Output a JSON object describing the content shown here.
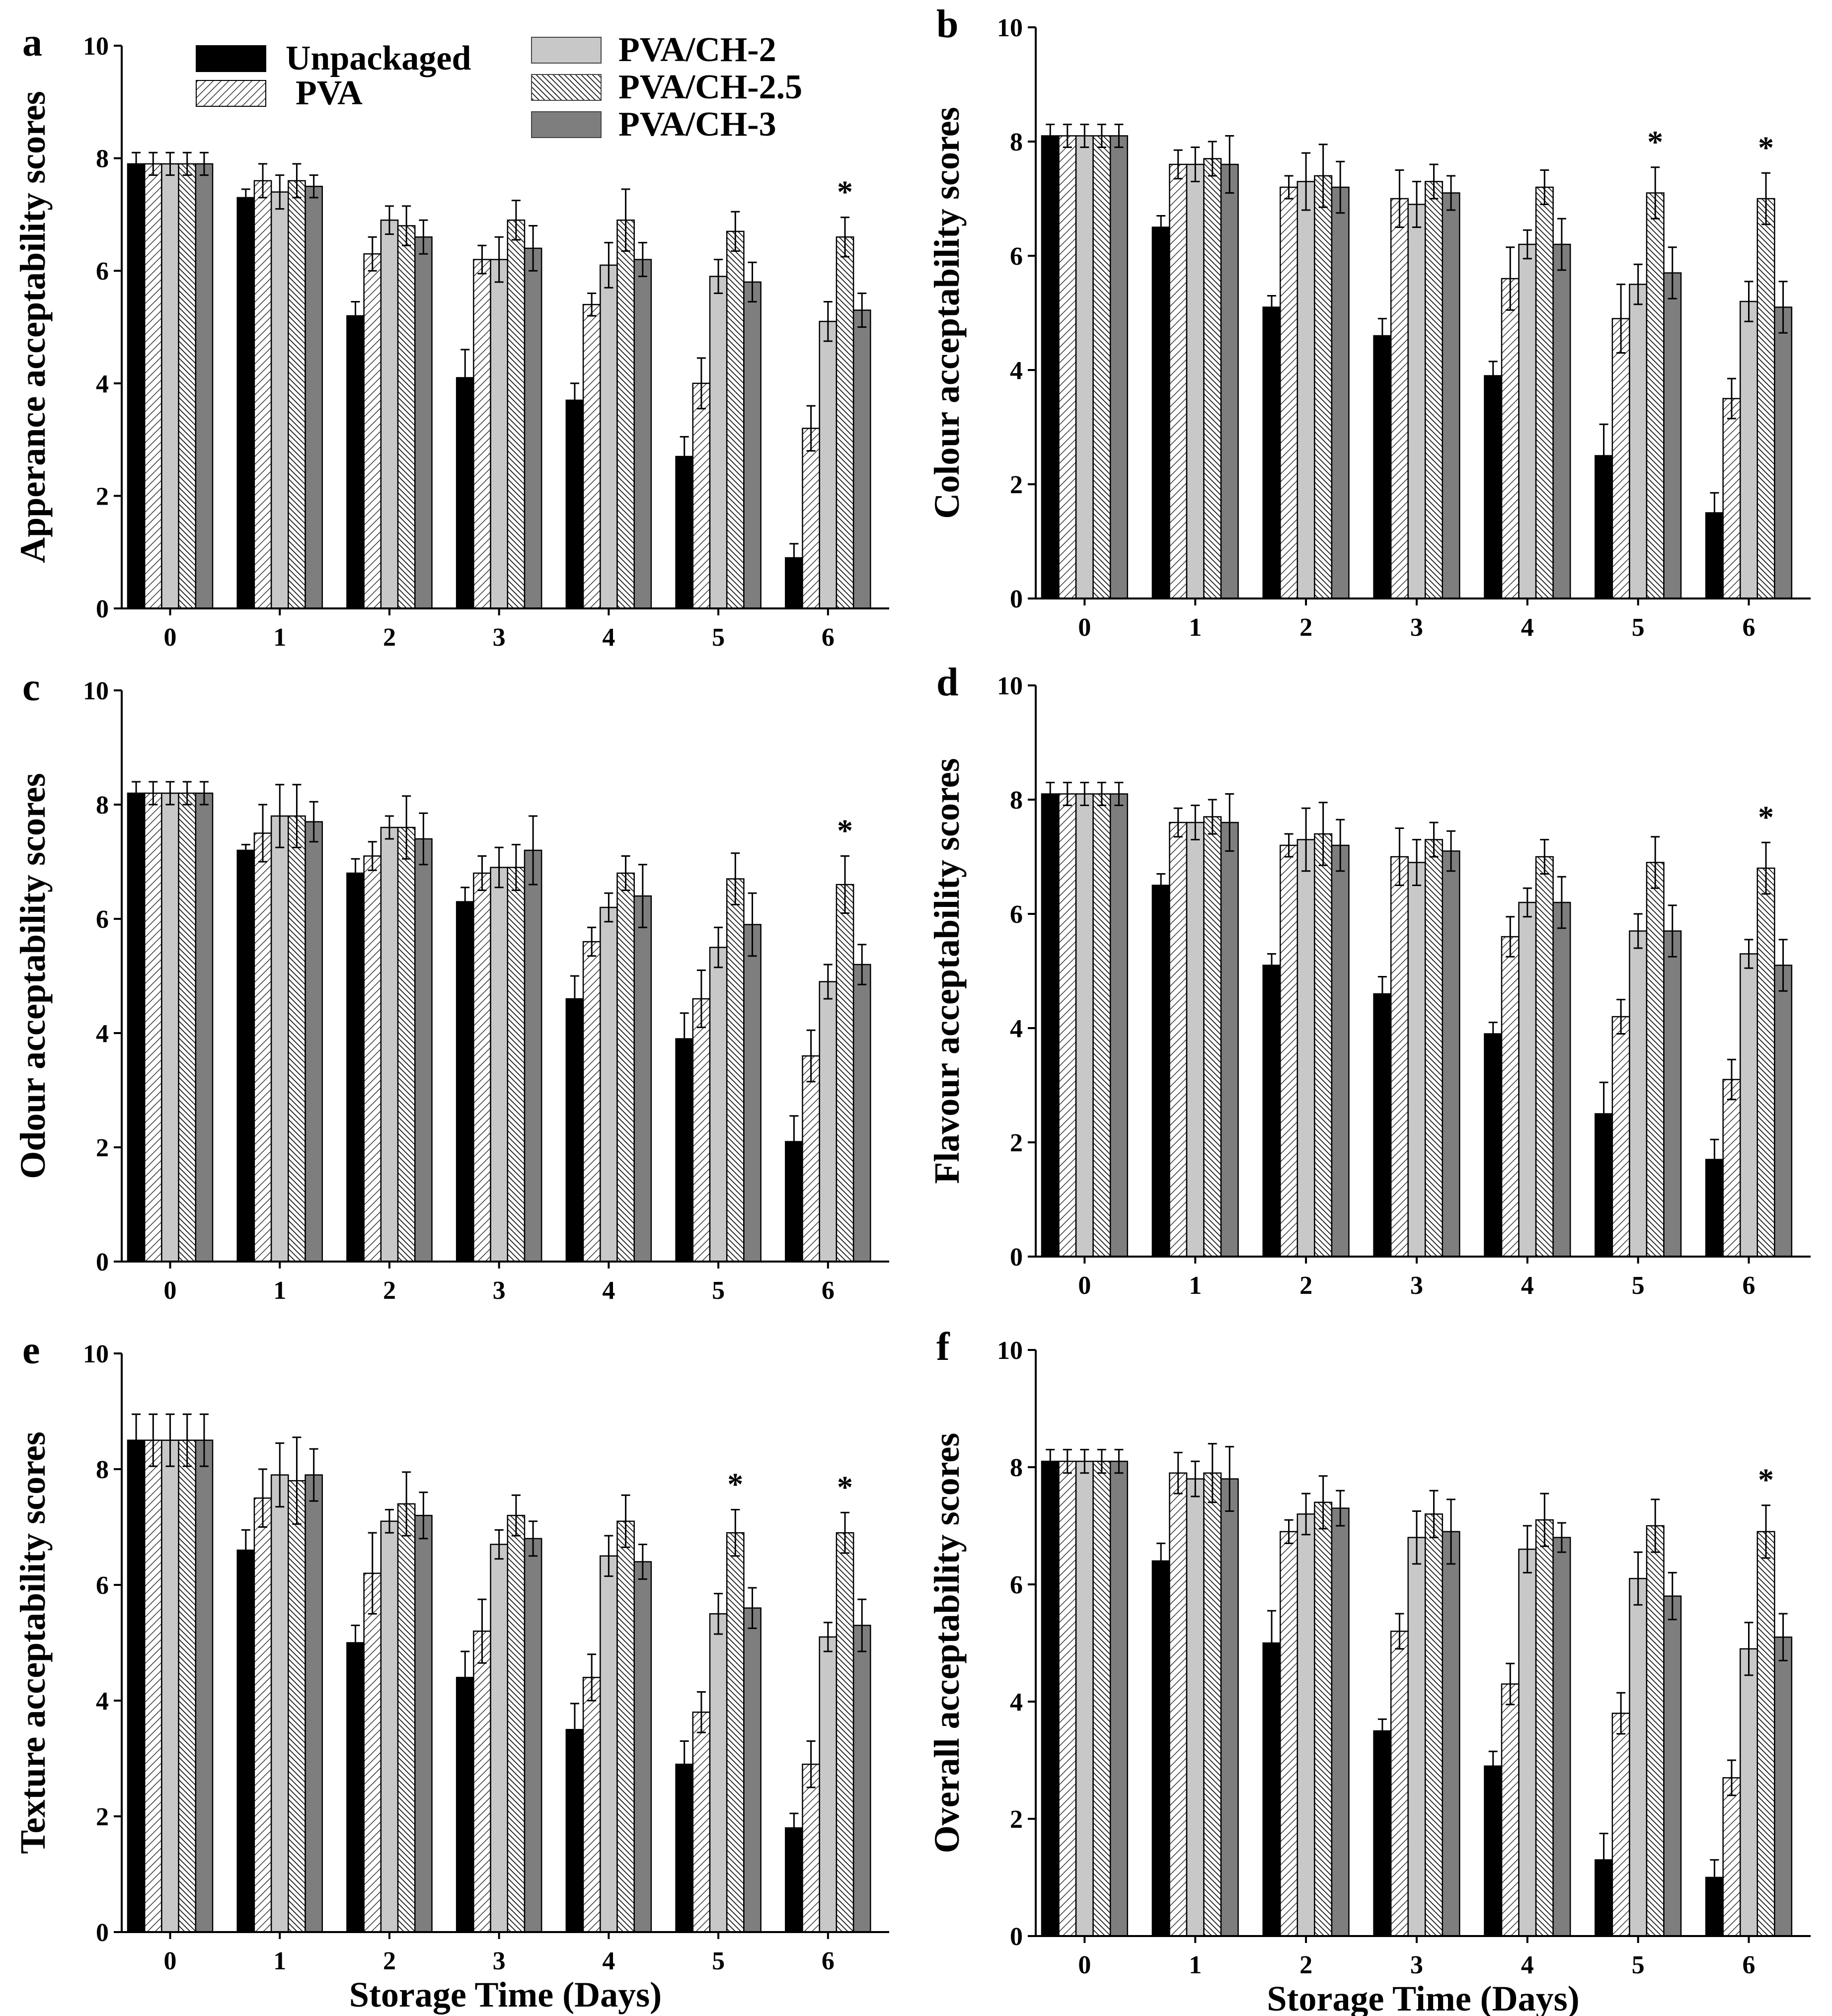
{
  "chart_data": [
    {
      "type": "bar",
      "panel": "a",
      "ylabel": "Apperance acceptability scores",
      "xlabel": "",
      "ylim": [
        0,
        10
      ],
      "yticks": [
        0,
        2,
        4,
        6,
        8,
        10
      ],
      "categories": [
        "0",
        "1",
        "2",
        "3",
        "4",
        "5",
        "6"
      ],
      "series": [
        {
          "name": "Unpackaged",
          "values": [
            7.9,
            7.3,
            5.2,
            4.1,
            3.7,
            2.7,
            0.9
          ],
          "errors": [
            0.2,
            0.15,
            0.25,
            0.5,
            0.3,
            0.35,
            0.25
          ]
        },
        {
          "name": "PVA",
          "values": [
            7.9,
            7.6,
            6.3,
            6.2,
            5.4,
            4.0,
            3.2
          ],
          "errors": [
            0.2,
            0.3,
            0.3,
            0.25,
            0.2,
            0.45,
            0.4
          ]
        },
        {
          "name": "PVA/CH-2",
          "values": [
            7.9,
            7.4,
            6.9,
            6.2,
            6.1,
            5.9,
            5.1
          ],
          "errors": [
            0.2,
            0.3,
            0.25,
            0.4,
            0.4,
            0.3,
            0.35
          ]
        },
        {
          "name": "PVA/CH-2.5",
          "values": [
            7.9,
            7.6,
            6.8,
            6.9,
            6.9,
            6.7,
            6.6
          ],
          "errors": [
            0.2,
            0.3,
            0.35,
            0.35,
            0.55,
            0.35,
            0.35
          ]
        },
        {
          "name": "PVA/CH-3",
          "values": [
            7.9,
            7.5,
            6.6,
            6.4,
            6.2,
            5.8,
            5.3
          ],
          "errors": [
            0.2,
            0.2,
            0.3,
            0.4,
            0.3,
            0.35,
            0.3
          ]
        }
      ],
      "annotations": [
        {
          "category": "6",
          "text": "*"
        }
      ]
    },
    {
      "type": "bar",
      "panel": "b",
      "ylabel": "Colour acceptability scores",
      "xlabel": "",
      "ylim": [
        0,
        10
      ],
      "yticks": [
        0,
        2,
        4,
        6,
        8,
        10
      ],
      "categories": [
        "0",
        "1",
        "2",
        "3",
        "4",
        "5",
        "6"
      ],
      "series": [
        {
          "name": "Unpackaged",
          "values": [
            8.1,
            6.5,
            5.1,
            4.6,
            3.9,
            2.5,
            1.5
          ],
          "errors": [
            0.2,
            0.2,
            0.2,
            0.3,
            0.25,
            0.55,
            0.35
          ]
        },
        {
          "name": "PVA",
          "values": [
            8.1,
            7.6,
            7.2,
            7.0,
            5.6,
            4.9,
            3.5
          ],
          "errors": [
            0.2,
            0.25,
            0.2,
            0.5,
            0.55,
            0.6,
            0.35
          ]
        },
        {
          "name": "PVA/CH-2",
          "values": [
            8.1,
            7.6,
            7.3,
            6.9,
            6.2,
            5.5,
            5.2
          ],
          "errors": [
            0.2,
            0.3,
            0.5,
            0.4,
            0.25,
            0.35,
            0.35
          ]
        },
        {
          "name": "PVA/CH-2.5",
          "values": [
            8.1,
            7.7,
            7.4,
            7.3,
            7.2,
            7.1,
            7.0
          ],
          "errors": [
            0.2,
            0.3,
            0.55,
            0.3,
            0.3,
            0.45,
            0.45
          ]
        },
        {
          "name": "PVA/CH-3",
          "values": [
            8.1,
            7.6,
            7.2,
            7.1,
            6.2,
            5.7,
            5.1
          ],
          "errors": [
            0.2,
            0.5,
            0.45,
            0.3,
            0.45,
            0.45,
            0.45
          ]
        }
      ],
      "annotations": [
        {
          "category": "5",
          "text": "*"
        },
        {
          "category": "6",
          "text": "*"
        }
      ]
    },
    {
      "type": "bar",
      "panel": "c",
      "ylabel": "Odour acceptability scores",
      "xlabel": "",
      "ylim": [
        0,
        10
      ],
      "yticks": [
        0,
        2,
        4,
        6,
        8,
        10
      ],
      "categories": [
        "0",
        "1",
        "2",
        "3",
        "4",
        "5",
        "6"
      ],
      "series": [
        {
          "name": "Unpackaged",
          "values": [
            8.2,
            7.2,
            6.8,
            6.3,
            4.6,
            3.9,
            2.1
          ],
          "errors": [
            0.2,
            0.1,
            0.25,
            0.25,
            0.4,
            0.45,
            0.45
          ]
        },
        {
          "name": "PVA",
          "values": [
            8.2,
            7.5,
            7.1,
            6.8,
            5.6,
            4.6,
            3.6
          ],
          "errors": [
            0.2,
            0.5,
            0.25,
            0.3,
            0.25,
            0.5,
            0.45
          ]
        },
        {
          "name": "PVA/CH-2",
          "values": [
            8.2,
            7.8,
            7.6,
            6.9,
            6.2,
            5.5,
            4.9
          ],
          "errors": [
            0.2,
            0.55,
            0.2,
            0.35,
            0.25,
            0.35,
            0.3
          ]
        },
        {
          "name": "PVA/CH-2.5",
          "values": [
            8.2,
            7.8,
            7.6,
            6.9,
            6.8,
            6.7,
            6.6
          ],
          "errors": [
            0.2,
            0.55,
            0.55,
            0.4,
            0.3,
            0.45,
            0.5
          ]
        },
        {
          "name": "PVA/CH-3",
          "values": [
            8.2,
            7.7,
            7.4,
            7.2,
            6.4,
            5.9,
            5.2
          ],
          "errors": [
            0.2,
            0.35,
            0.45,
            0.6,
            0.55,
            0.55,
            0.35
          ]
        }
      ],
      "annotations": [
        {
          "category": "6",
          "text": "*"
        }
      ]
    },
    {
      "type": "bar",
      "panel": "d",
      "ylabel": "Flavour acceptability scores",
      "xlabel": "",
      "ylim": [
        0,
        10
      ],
      "yticks": [
        0,
        2,
        4,
        6,
        8,
        10
      ],
      "categories": [
        "0",
        "1",
        "2",
        "3",
        "4",
        "5",
        "6"
      ],
      "series": [
        {
          "name": "Unpackaged",
          "values": [
            8.1,
            6.5,
            5.1,
            4.6,
            3.9,
            2.5,
            1.7
          ],
          "errors": [
            0.2,
            0.2,
            0.2,
            0.3,
            0.2,
            0.55,
            0.35
          ]
        },
        {
          "name": "PVA",
          "values": [
            8.1,
            7.6,
            7.2,
            7.0,
            5.6,
            4.2,
            3.1
          ],
          "errors": [
            0.2,
            0.25,
            0.2,
            0.5,
            0.35,
            0.3,
            0.35
          ]
        },
        {
          "name": "PVA/CH-2",
          "values": [
            8.1,
            7.6,
            7.3,
            6.9,
            6.2,
            5.7,
            5.3
          ],
          "errors": [
            0.2,
            0.3,
            0.55,
            0.4,
            0.25,
            0.3,
            0.25
          ]
        },
        {
          "name": "PVA/CH-2.5",
          "values": [
            8.1,
            7.7,
            7.4,
            7.3,
            7.0,
            6.9,
            6.8
          ],
          "errors": [
            0.2,
            0.3,
            0.55,
            0.3,
            0.3,
            0.45,
            0.45
          ]
        },
        {
          "name": "PVA/CH-3",
          "values": [
            8.1,
            7.6,
            7.2,
            7.1,
            6.2,
            5.7,
            5.1
          ],
          "errors": [
            0.2,
            0.5,
            0.45,
            0.35,
            0.45,
            0.45,
            0.45
          ]
        }
      ],
      "annotations": [
        {
          "category": "6",
          "text": "*"
        }
      ]
    },
    {
      "type": "bar",
      "panel": "e",
      "ylabel": "Texture acceptability scores",
      "xlabel": "Storage Time (Days)",
      "ylim": [
        0,
        10
      ],
      "yticks": [
        0,
        2,
        4,
        6,
        8,
        10
      ],
      "categories": [
        "0",
        "1",
        "2",
        "3",
        "4",
        "5",
        "6"
      ],
      "series": [
        {
          "name": "Unpackaged",
          "values": [
            8.5,
            6.6,
            5.0,
            4.4,
            3.5,
            2.9,
            1.8
          ],
          "errors": [
            0.45,
            0.35,
            0.3,
            0.45,
            0.45,
            0.4,
            0.25
          ]
        },
        {
          "name": "PVA",
          "values": [
            8.5,
            7.5,
            6.2,
            5.2,
            4.4,
            3.8,
            2.9
          ],
          "errors": [
            0.45,
            0.5,
            0.7,
            0.55,
            0.4,
            0.35,
            0.4
          ]
        },
        {
          "name": "PVA/CH-2",
          "values": [
            8.5,
            7.9,
            7.1,
            6.7,
            6.5,
            5.5,
            5.1
          ],
          "errors": [
            0.45,
            0.55,
            0.2,
            0.25,
            0.35,
            0.35,
            0.25
          ]
        },
        {
          "name": "PVA/CH-2.5",
          "values": [
            8.5,
            7.8,
            7.4,
            7.2,
            7.1,
            6.9,
            6.9
          ],
          "errors": [
            0.45,
            0.75,
            0.55,
            0.35,
            0.45,
            0.4,
            0.35
          ]
        },
        {
          "name": "PVA/CH-3",
          "values": [
            8.5,
            7.9,
            7.2,
            6.8,
            6.4,
            5.6,
            5.3
          ],
          "errors": [
            0.45,
            0.45,
            0.4,
            0.3,
            0.3,
            0.35,
            0.45
          ]
        }
      ],
      "annotations": [
        {
          "category": "5",
          "text": "*"
        },
        {
          "category": "6",
          "text": "*"
        }
      ]
    },
    {
      "type": "bar",
      "panel": "f",
      "ylabel": "Overall acceptability scores",
      "xlabel": "Storage Time (Days)",
      "ylim": [
        0,
        10
      ],
      "yticks": [
        0,
        2,
        4,
        6,
        8,
        10
      ],
      "categories": [
        "0",
        "1",
        "2",
        "3",
        "4",
        "5",
        "6"
      ],
      "series": [
        {
          "name": "Unpackaged",
          "values": [
            8.1,
            6.4,
            5.0,
            3.5,
            2.9,
            1.3,
            1.0
          ],
          "errors": [
            0.2,
            0.3,
            0.55,
            0.2,
            0.25,
            0.45,
            0.3
          ]
        },
        {
          "name": "PVA",
          "values": [
            8.1,
            7.9,
            6.9,
            5.2,
            4.3,
            3.8,
            2.7
          ],
          "errors": [
            0.2,
            0.35,
            0.2,
            0.3,
            0.35,
            0.35,
            0.3
          ]
        },
        {
          "name": "PVA/CH-2",
          "values": [
            8.1,
            7.8,
            7.2,
            6.8,
            6.6,
            6.1,
            4.9
          ],
          "errors": [
            0.2,
            0.3,
            0.35,
            0.45,
            0.4,
            0.45,
            0.45
          ]
        },
        {
          "name": "PVA/CH-2.5",
          "values": [
            8.1,
            7.9,
            7.4,
            7.2,
            7.1,
            7.0,
            6.9
          ],
          "errors": [
            0.2,
            0.5,
            0.45,
            0.4,
            0.45,
            0.45,
            0.45
          ]
        },
        {
          "name": "PVA/CH-3",
          "values": [
            8.1,
            7.8,
            7.3,
            6.9,
            6.8,
            5.8,
            5.1
          ],
          "errors": [
            0.2,
            0.55,
            0.3,
            0.55,
            0.25,
            0.4,
            0.4
          ]
        }
      ],
      "annotations": [
        {
          "category": "6",
          "text": "*"
        }
      ]
    }
  ],
  "legend": {
    "entries": [
      "Unpackaged",
      "PVA",
      "PVA/CH-2",
      "PVA/CH-2.5",
      "PVA/CH-3"
    ],
    "placement": "top of panel a"
  },
  "style": {
    "Unpackaged": {
      "fill": "#000000",
      "pattern": "solid"
    },
    "PVA": {
      "fill": "#ffffff",
      "pattern": "hatch-fine"
    },
    "PVA/CH-2": {
      "fill": "#c8c8c8",
      "pattern": "solid"
    },
    "PVA/CH-2.5": {
      "fill": "#ffffff",
      "pattern": "hatch-dense"
    },
    "PVA/CH-3": {
      "fill": "#7e7e7e",
      "pattern": "solid"
    }
  }
}
